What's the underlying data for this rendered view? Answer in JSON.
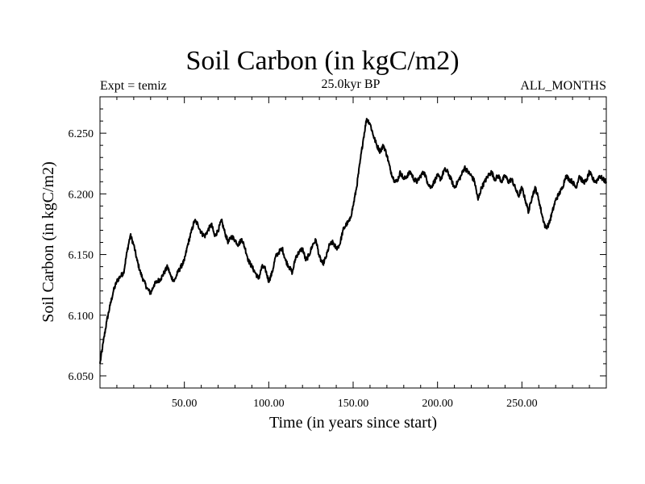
{
  "header": {
    "title": "Soil Carbon (in kgC/m2)",
    "left_note": "Expt = temiz",
    "center_note": "25.0kyr BP",
    "right_note": "ALL_MONTHS"
  },
  "chart_data": {
    "type": "line",
    "title": "Soil Carbon (in kgC/m2)",
    "xlabel": "Time (in years since start)",
    "ylabel": "Soil Carbon (in kgC/m2)",
    "xlim": [
      0,
      300
    ],
    "ylim": [
      6.04,
      6.28
    ],
    "x_ticks": [
      50,
      100,
      150,
      200,
      250
    ],
    "x_tick_labels": [
      "50.00",
      "100.00",
      "150.00",
      "200.00",
      "250.00"
    ],
    "y_ticks": [
      6.05,
      6.1,
      6.15,
      6.2,
      6.25
    ],
    "y_tick_labels": [
      "6.050",
      "6.100",
      "6.150",
      "6.200",
      "6.250"
    ],
    "grid": false,
    "line_color": "#000000",
    "series": [
      {
        "x": [
          0,
          2,
          4,
          6,
          8,
          10,
          12,
          14,
          16,
          18,
          20,
          22,
          24,
          26,
          28,
          30,
          32,
          34,
          36,
          38,
          40,
          42,
          44,
          46,
          48,
          50,
          52,
          54,
          56,
          58,
          60,
          62,
          64,
          66,
          68,
          70,
          72,
          74,
          76,
          78,
          80,
          82,
          84,
          86,
          88,
          90,
          92,
          94,
          96,
          98,
          100,
          102,
          104,
          106,
          108,
          110,
          112,
          114,
          116,
          118,
          120,
          122,
          124,
          126,
          128,
          130,
          132,
          134,
          136,
          138,
          140,
          142,
          144,
          146,
          148,
          150,
          152,
          154,
          156,
          158,
          160,
          162,
          164,
          166,
          168,
          170,
          172,
          174,
          176,
          178,
          180,
          182,
          184,
          186,
          188,
          190,
          192,
          194,
          196,
          198,
          200,
          202,
          204,
          206,
          208,
          210,
          212,
          214,
          216,
          218,
          220,
          222,
          224,
          226,
          228,
          230,
          232,
          234,
          236,
          238,
          240,
          242,
          244,
          246,
          248,
          250,
          252,
          254,
          256,
          258,
          260,
          262,
          264,
          266,
          268,
          270,
          272,
          274,
          276,
          278,
          280,
          282,
          284,
          286,
          288,
          290,
          292,
          294,
          296,
          298,
          300
        ],
        "y": [
          6.06,
          6.078,
          6.095,
          6.108,
          6.12,
          6.128,
          6.132,
          6.135,
          6.152,
          6.166,
          6.158,
          6.145,
          6.135,
          6.128,
          6.122,
          6.118,
          6.125,
          6.128,
          6.13,
          6.135,
          6.14,
          6.132,
          6.128,
          6.135,
          6.14,
          6.145,
          6.158,
          6.168,
          6.178,
          6.175,
          6.168,
          6.165,
          6.17,
          6.175,
          6.165,
          6.17,
          6.178,
          6.168,
          6.16,
          6.165,
          6.162,
          6.158,
          6.163,
          6.155,
          6.145,
          6.14,
          6.135,
          6.13,
          6.14,
          6.138,
          6.128,
          6.135,
          6.148,
          6.152,
          6.155,
          6.145,
          6.14,
          6.135,
          6.148,
          6.152,
          6.155,
          6.145,
          6.15,
          6.158,
          6.162,
          6.148,
          6.142,
          6.148,
          6.158,
          6.16,
          6.155,
          6.158,
          6.17,
          6.175,
          6.178,
          6.19,
          6.205,
          6.225,
          6.245,
          6.262,
          6.258,
          6.248,
          6.24,
          6.235,
          6.24,
          6.232,
          6.22,
          6.212,
          6.21,
          6.218,
          6.212,
          6.215,
          6.218,
          6.212,
          6.21,
          6.215,
          6.218,
          6.21,
          6.205,
          6.21,
          6.215,
          6.212,
          6.22,
          6.218,
          6.212,
          6.205,
          6.21,
          6.215,
          6.222,
          6.218,
          6.215,
          6.21,
          6.195,
          6.205,
          6.21,
          6.215,
          6.218,
          6.212,
          6.215,
          6.21,
          6.215,
          6.21,
          6.212,
          6.205,
          6.198,
          6.205,
          6.195,
          6.185,
          6.198,
          6.205,
          6.195,
          6.182,
          6.172,
          6.175,
          6.185,
          6.195,
          6.2,
          6.205,
          6.215,
          6.212,
          6.21,
          6.205,
          6.215,
          6.21,
          6.21,
          6.218,
          6.212,
          6.21,
          6.215,
          6.212,
          6.21
        ]
      }
    ]
  }
}
